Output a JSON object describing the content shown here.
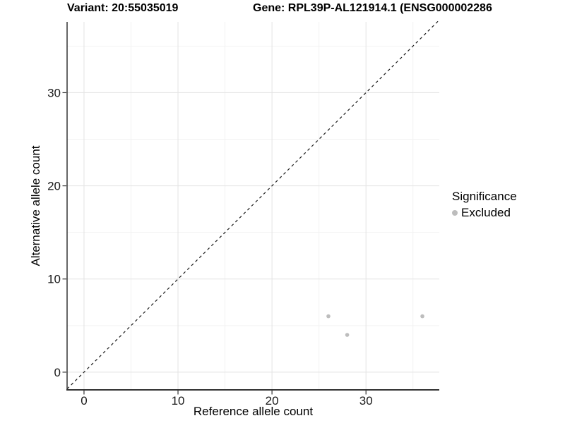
{
  "header": {
    "variant_title": "Variant: 20:55035019",
    "gene_title": "Gene: RPL39P-AL121914.1 (ENSG000002286"
  },
  "chart_data": {
    "type": "scatter",
    "title_left": "Variant: 20:55035019",
    "title_right": "Gene: RPL39P-AL121914.1 (ENSG000002286",
    "xlabel": "Reference allele count",
    "ylabel": "Alternative allele count",
    "xlim": [
      -1.8,
      37.8
    ],
    "ylim": [
      -1.9,
      37.6
    ],
    "x_ticks": [
      0,
      10,
      20,
      30
    ],
    "y_ticks": [
      0,
      10,
      20,
      30
    ],
    "x_minor_ticks": [
      5,
      15,
      25,
      35
    ],
    "y_minor_ticks": [
      5,
      15,
      25,
      35
    ],
    "grid": "major-and-minor",
    "identity_line": {
      "style": "dashed",
      "color": "#1a1a1a",
      "from": -1.8,
      "to": 37.8
    },
    "series": [
      {
        "name": "Excluded",
        "color": "#bdbdbd",
        "points": [
          {
            "x": 26,
            "y": 6
          },
          {
            "x": 28,
            "y": 4
          },
          {
            "x": 36,
            "y": 6
          }
        ]
      }
    ],
    "legend": {
      "title": "Significance",
      "position": "right",
      "items": [
        {
          "label": "Excluded",
          "color": "#bdbdbd"
        }
      ]
    },
    "colors": {
      "grid_major": "#e3e3e3",
      "grid_minor": "#f2f2f2",
      "axis_line": "#333333",
      "tick_mark": "#333333",
      "tick_label": "#1a1a1a",
      "point": "#bdbdbd"
    }
  }
}
